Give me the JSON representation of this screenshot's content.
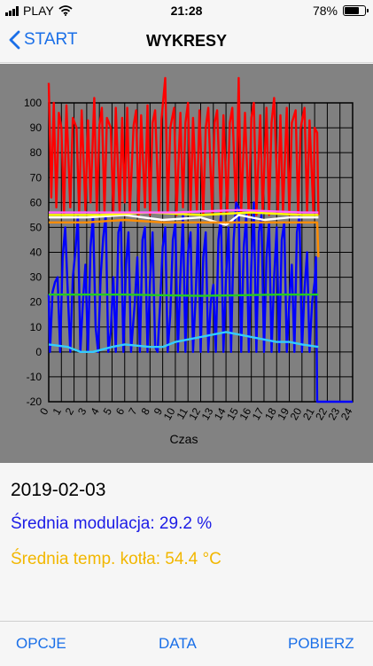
{
  "status_bar": {
    "carrier": "PLAY",
    "time": "21:28",
    "battery": "78%",
    "battery_level": 0.78
  },
  "nav": {
    "back_label": "START",
    "title": "WYKRESY"
  },
  "chart_data": {
    "type": "line",
    "xlabel": "Czas",
    "x_ticks": [
      "0",
      "1",
      "2",
      "3",
      "4",
      "5",
      "6",
      "7",
      "8",
      "9",
      "10",
      "11",
      "12",
      "13",
      "14",
      "15",
      "16",
      "17",
      "18",
      "19",
      "20",
      "21",
      "22",
      "23",
      "24"
    ],
    "y_ticks": [
      "100",
      "90",
      "80",
      "70",
      "60",
      "50",
      "40",
      "30",
      "20",
      "10",
      "0",
      "-10",
      "-20"
    ],
    "xlim": [
      0,
      24
    ],
    "ylim": [
      -20,
      100
    ],
    "grid": true,
    "series": [
      {
        "color": "#ff0000",
        "points": [
          [
            0,
            108
          ],
          [
            0.2,
            62
          ],
          [
            0.4,
            100
          ],
          [
            0.6,
            58
          ],
          [
            0.8,
            96
          ],
          [
            1.0,
            90
          ],
          [
            1.2,
            55
          ],
          [
            1.4,
            99
          ],
          [
            1.7,
            58
          ],
          [
            1.9,
            94
          ],
          [
            2.2,
            90
          ],
          [
            2.4,
            56
          ],
          [
            2.6,
            97
          ],
          [
            2.9,
            57
          ],
          [
            3.1,
            93
          ],
          [
            3.3,
            60
          ],
          [
            3.6,
            102
          ],
          [
            3.8,
            56
          ],
          [
            4.0,
            91
          ],
          [
            4.2,
            98
          ],
          [
            4.4,
            56
          ],
          [
            4.6,
            94
          ],
          [
            4.9,
            90
          ],
          [
            5.1,
            56
          ],
          [
            5.3,
            98
          ],
          [
            5.6,
            56
          ],
          [
            5.8,
            94
          ],
          [
            6.0,
            60
          ],
          [
            6.2,
            98
          ],
          [
            6.4,
            56
          ],
          [
            6.7,
            91
          ],
          [
            6.9,
            97
          ],
          [
            7.1,
            55
          ],
          [
            7.3,
            95
          ],
          [
            7.6,
            58
          ],
          [
            7.8,
            99
          ],
          [
            8.0,
            55
          ],
          [
            8.2,
            92
          ],
          [
            8.4,
            97
          ],
          [
            8.7,
            56
          ],
          [
            8.9,
            93
          ],
          [
            9.2,
            110
          ],
          [
            9.4,
            56
          ],
          [
            9.6,
            90
          ],
          [
            9.9,
            98
          ],
          [
            10.1,
            55
          ],
          [
            10.4,
            96
          ],
          [
            10.6,
            58
          ],
          [
            10.8,
            92
          ],
          [
            11.0,
            100
          ],
          [
            11.2,
            56
          ],
          [
            11.4,
            94
          ],
          [
            11.7,
            57
          ],
          [
            11.9,
            97
          ],
          [
            12.2,
            55
          ],
          [
            12.4,
            90
          ],
          [
            12.6,
            98
          ],
          [
            12.9,
            56
          ],
          [
            13.1,
            92
          ],
          [
            13.3,
            97
          ],
          [
            13.6,
            55
          ],
          [
            13.8,
            95
          ],
          [
            14.1,
            56
          ],
          [
            14.3,
            92
          ],
          [
            14.5,
            98
          ],
          [
            14.8,
            55
          ],
          [
            15.0,
            110
          ],
          [
            15.2,
            56
          ],
          [
            15.5,
            96
          ],
          [
            15.8,
            55
          ],
          [
            16.0,
            94
          ],
          [
            16.2,
            100
          ],
          [
            16.4,
            55
          ],
          [
            16.7,
            95
          ],
          [
            16.9,
            56
          ],
          [
            17.2,
            98
          ],
          [
            17.4,
            55
          ],
          [
            17.6,
            92
          ],
          [
            17.8,
            102
          ],
          [
            18.1,
            56
          ],
          [
            18.3,
            95
          ],
          [
            18.5,
            56
          ],
          [
            18.8,
            98
          ],
          [
            19.0,
            55
          ],
          [
            19.2,
            92
          ],
          [
            19.5,
            97
          ],
          [
            19.7,
            55
          ],
          [
            19.9,
            90
          ],
          [
            20.2,
            98
          ],
          [
            20.4,
            56
          ],
          [
            20.6,
            93
          ],
          [
            20.9,
            56
          ],
          [
            21.0,
            90
          ],
          [
            21.2,
            88
          ],
          [
            21.3,
            55
          ]
        ]
      },
      {
        "color": "#0000ff",
        "points": [
          [
            0,
            23
          ],
          [
            0.1,
            0
          ],
          [
            0.3,
            24
          ],
          [
            0.5,
            28
          ],
          [
            0.7,
            30
          ],
          [
            0.9,
            0
          ],
          [
            1.1,
            38
          ],
          [
            1.3,
            50
          ],
          [
            1.5,
            25
          ],
          [
            1.7,
            0
          ],
          [
            1.9,
            30
          ],
          [
            2.1,
            40
          ],
          [
            2.3,
            55
          ],
          [
            2.5,
            0
          ],
          [
            2.7,
            20
          ],
          [
            2.9,
            35
          ],
          [
            3.1,
            0
          ],
          [
            3.3,
            42
          ],
          [
            3.5,
            55
          ],
          [
            3.7,
            10
          ],
          [
            3.9,
            0
          ],
          [
            4.1,
            30
          ],
          [
            4.3,
            46
          ],
          [
            4.5,
            55
          ],
          [
            4.7,
            0
          ],
          [
            4.9,
            8
          ],
          [
            5.1,
            30
          ],
          [
            5.3,
            0
          ],
          [
            5.5,
            48
          ],
          [
            5.7,
            52
          ],
          [
            5.9,
            0
          ],
          [
            6.1,
            35
          ],
          [
            6.3,
            48
          ],
          [
            6.5,
            0
          ],
          [
            6.8,
            20
          ],
          [
            7.0,
            38
          ],
          [
            7.2,
            0
          ],
          [
            7.4,
            45
          ],
          [
            7.6,
            50
          ],
          [
            7.8,
            0
          ],
          [
            8.0,
            28
          ],
          [
            8.2,
            48
          ],
          [
            8.4,
            2
          ],
          [
            8.6,
            0
          ],
          [
            8.8,
            20
          ],
          [
            9.0,
            42
          ],
          [
            9.2,
            50
          ],
          [
            9.4,
            0
          ],
          [
            9.6,
            15
          ],
          [
            9.8,
            45
          ],
          [
            10.0,
            52
          ],
          [
            10.2,
            0
          ],
          [
            10.4,
            30
          ],
          [
            10.6,
            55
          ],
          [
            10.8,
            0
          ],
          [
            11.0,
            40
          ],
          [
            11.2,
            48
          ],
          [
            11.4,
            0
          ],
          [
            11.6,
            22
          ],
          [
            11.8,
            52
          ],
          [
            12.0,
            0
          ],
          [
            12.2,
            38
          ],
          [
            12.4,
            48
          ],
          [
            12.6,
            0
          ],
          [
            12.8,
            20
          ],
          [
            13.0,
            27
          ],
          [
            13.2,
            0
          ],
          [
            13.4,
            45
          ],
          [
            13.6,
            55
          ],
          [
            13.8,
            0
          ],
          [
            14.0,
            30
          ],
          [
            14.2,
            50
          ],
          [
            14.4,
            0
          ],
          [
            14.6,
            45
          ],
          [
            14.8,
            60
          ],
          [
            15.0,
            58
          ],
          [
            15.2,
            0
          ],
          [
            15.4,
            42
          ],
          [
            15.6,
            55
          ],
          [
            15.8,
            0
          ],
          [
            16.0,
            35
          ],
          [
            16.2,
            60
          ],
          [
            16.4,
            0
          ],
          [
            16.6,
            48
          ],
          [
            16.8,
            55
          ],
          [
            17.0,
            0
          ],
          [
            17.2,
            38
          ],
          [
            17.4,
            52
          ],
          [
            17.6,
            0
          ],
          [
            17.8,
            30
          ],
          [
            18.0,
            50
          ],
          [
            18.2,
            0
          ],
          [
            18.4,
            45
          ],
          [
            18.6,
            52
          ],
          [
            18.8,
            0
          ],
          [
            19.0,
            20
          ],
          [
            19.2,
            35
          ],
          [
            19.4,
            0
          ],
          [
            19.6,
            48
          ],
          [
            19.8,
            55
          ],
          [
            20.0,
            0
          ],
          [
            20.2,
            25
          ],
          [
            20.4,
            40
          ],
          [
            20.6,
            0
          ],
          [
            20.8,
            20
          ],
          [
            21.0,
            28
          ],
          [
            21.1,
            38
          ],
          [
            21.2,
            -20
          ],
          [
            24,
            -20
          ]
        ]
      },
      {
        "color": "#ffffff",
        "points": [
          [
            0,
            54
          ],
          [
            3,
            54
          ],
          [
            6,
            55
          ],
          [
            9,
            53
          ],
          [
            12,
            54
          ],
          [
            14,
            51
          ],
          [
            15,
            55
          ],
          [
            17,
            53
          ],
          [
            19,
            54
          ],
          [
            21.3,
            54
          ]
        ]
      },
      {
        "color": "#ffff00",
        "points": [
          [
            0,
            55
          ],
          [
            4,
            55
          ],
          [
            8,
            56
          ],
          [
            12,
            55
          ],
          [
            16,
            56
          ],
          [
            20,
            55
          ],
          [
            21.3,
            55
          ]
        ]
      },
      {
        "color": "#ff8c00",
        "points": [
          [
            0,
            52
          ],
          [
            3,
            52
          ],
          [
            6,
            53
          ],
          [
            9,
            52
          ],
          [
            12,
            52
          ],
          [
            15,
            52
          ],
          [
            18,
            52
          ],
          [
            21.2,
            52
          ],
          [
            21.3,
            38
          ]
        ]
      },
      {
        "color": "#ff66ff",
        "points": [
          [
            0,
            56
          ],
          [
            5,
            56
          ],
          [
            10,
            56
          ],
          [
            15,
            57
          ],
          [
            20,
            56
          ],
          [
            21.3,
            56
          ]
        ]
      },
      {
        "color": "#22cc22",
        "points": [
          [
            0,
            23
          ],
          [
            6,
            23
          ],
          [
            12,
            22.5
          ],
          [
            18,
            23
          ],
          [
            21.3,
            23
          ]
        ]
      },
      {
        "color": "#33ccff",
        "points": [
          [
            0,
            3
          ],
          [
            1.5,
            2
          ],
          [
            2.5,
            0
          ],
          [
            3.5,
            0
          ],
          [
            5,
            2
          ],
          [
            6,
            3
          ],
          [
            8,
            2
          ],
          [
            9,
            2
          ],
          [
            10,
            4
          ],
          [
            11,
            5
          ],
          [
            12,
            6
          ],
          [
            13,
            7
          ],
          [
            14,
            8
          ],
          [
            15,
            7
          ],
          [
            16,
            6
          ],
          [
            17,
            5
          ],
          [
            18,
            4
          ],
          [
            19,
            4
          ],
          [
            20,
            3
          ],
          [
            21.3,
            2
          ]
        ]
      }
    ]
  },
  "info": {
    "date": "2019-02-03",
    "modulation": "Średnia modulacja: 29.2 %",
    "boiler_temp": "Średnia temp. kotła: 54.4 °C"
  },
  "tabs": {
    "options": "OPCJE",
    "data": "DATA",
    "download": "POBIERZ"
  }
}
